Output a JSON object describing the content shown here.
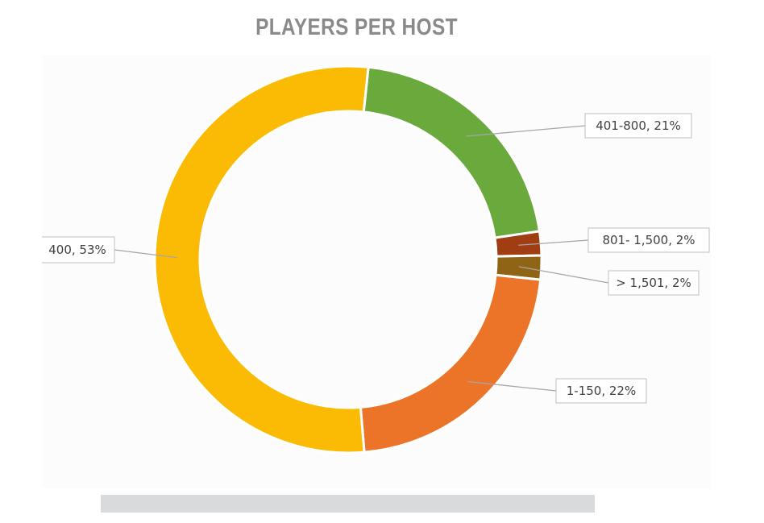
{
  "chart_data": {
    "type": "pie",
    "donut": true,
    "title": "PLAYERS PER HOST",
    "slices": [
      {
        "label": "401-800, 21%",
        "category": "401-800",
        "value": 21,
        "color": "#6aaa3d"
      },
      {
        "label": "801- 1,500, 2%",
        "category": "801- 1,500",
        "value": 2,
        "color": "#a13d12"
      },
      {
        "label": "> 1,501, 2%",
        "category": "> 1,501",
        "value": 2,
        "color": "#8f6414"
      },
      {
        "label": "1-150, 22%",
        "category": "1-150",
        "value": 22,
        "color": "#ec7428"
      },
      {
        "label": "400, 53%",
        "category": "400",
        "value": 53,
        "color": "#fbbb04"
      }
    ],
    "legend": "none",
    "data_labels": "outside with leader lines"
  }
}
